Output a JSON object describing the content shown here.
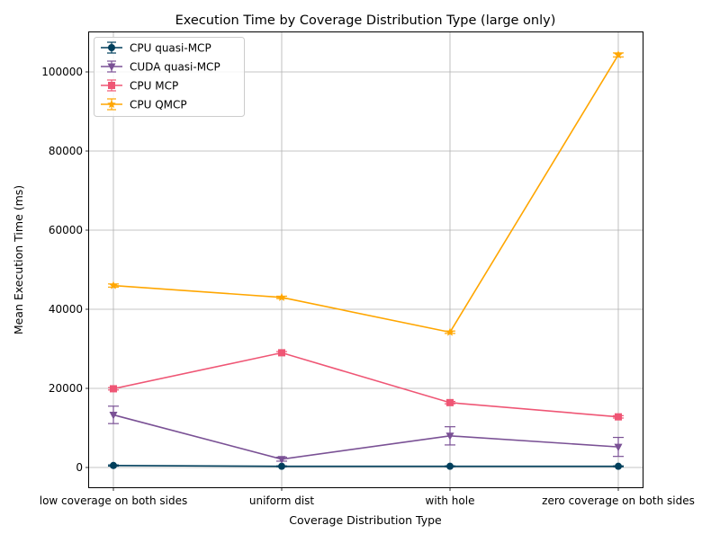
{
  "chart_data": {
    "type": "line",
    "title": "Execution Time by Coverage Distribution Type (large only)",
    "xlabel": "Coverage Distribution Type",
    "ylabel": "Mean Execution Time (ms)",
    "categories": [
      "low coverage on both sides",
      "uniform dist",
      "with hole",
      "zero coverage on both sides"
    ],
    "ylim": [
      -5000,
      110000
    ],
    "yticks": [
      0,
      20000,
      40000,
      60000,
      80000,
      100000
    ],
    "ytick_labels": [
      "0",
      "20000",
      "40000",
      "60000",
      "80000",
      "100000"
    ],
    "grid": true,
    "legend_position": "top-left",
    "series": [
      {
        "name": "CPU quasi-MCP",
        "color": "#003f5c",
        "marker": "circle",
        "values": [
          500,
          300,
          300,
          300
        ],
        "errors": [
          150,
          100,
          100,
          100
        ]
      },
      {
        "name": "CUDA quasi-MCP",
        "color": "#7a5195",
        "marker": "triangle-down",
        "values": [
          13300,
          2100,
          8000,
          5200
        ],
        "errors": [
          2200,
          500,
          2300,
          2400
        ]
      },
      {
        "name": "CPU MCP",
        "color": "#ef5675",
        "marker": "square",
        "values": [
          19900,
          29000,
          16400,
          12800
        ],
        "errors": [
          300,
          300,
          300,
          300
        ]
      },
      {
        "name": "CPU QMCP",
        "color": "#ffa600",
        "marker": "star",
        "values": [
          46000,
          43000,
          34200,
          104300
        ],
        "errors": [
          400,
          300,
          300,
          500
        ]
      }
    ]
  }
}
